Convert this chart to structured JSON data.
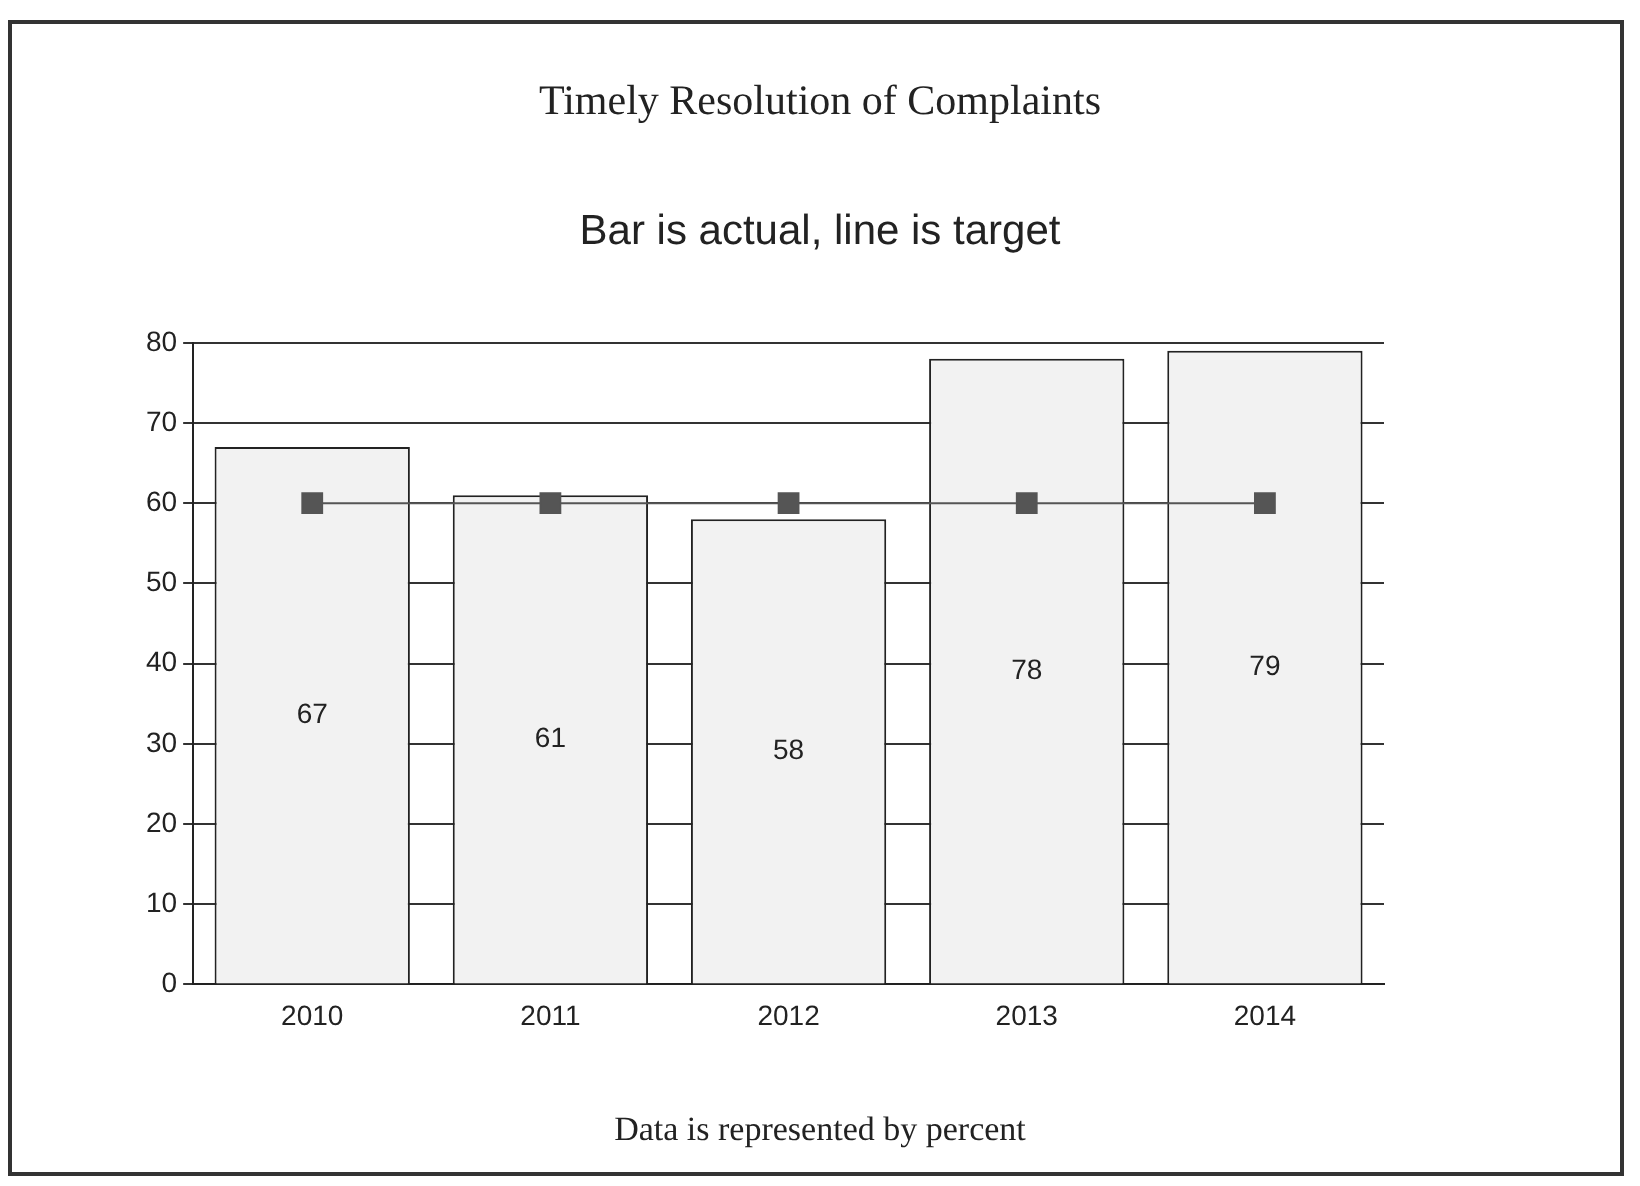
{
  "chart_data": {
    "type": "bar",
    "title": "Timely Resolution of Complaints",
    "subtitle": "Bar is actual, line is target",
    "categories": [
      "2010",
      "2011",
      "2012",
      "2013",
      "2014"
    ],
    "series": [
      {
        "color": "#f2f2f2",
        "values": [
          67,
          61,
          58,
          78,
          79
        ],
        "value_labels": [
          "67",
          "61",
          "58",
          "78",
          "79"
        ]
      },
      {
        "type": "line",
        "color": "#555555",
        "values": [
          60,
          60,
          60,
          60,
          60
        ],
        "marker": "square"
      }
    ],
    "ylim": [
      0,
      80
    ],
    "yticks": [
      0,
      10,
      20,
      30,
      40,
      50,
      60,
      70,
      80
    ],
    "grid": "y",
    "legend": false,
    "annotations": [
      "Data is represented by percent"
    ]
  }
}
